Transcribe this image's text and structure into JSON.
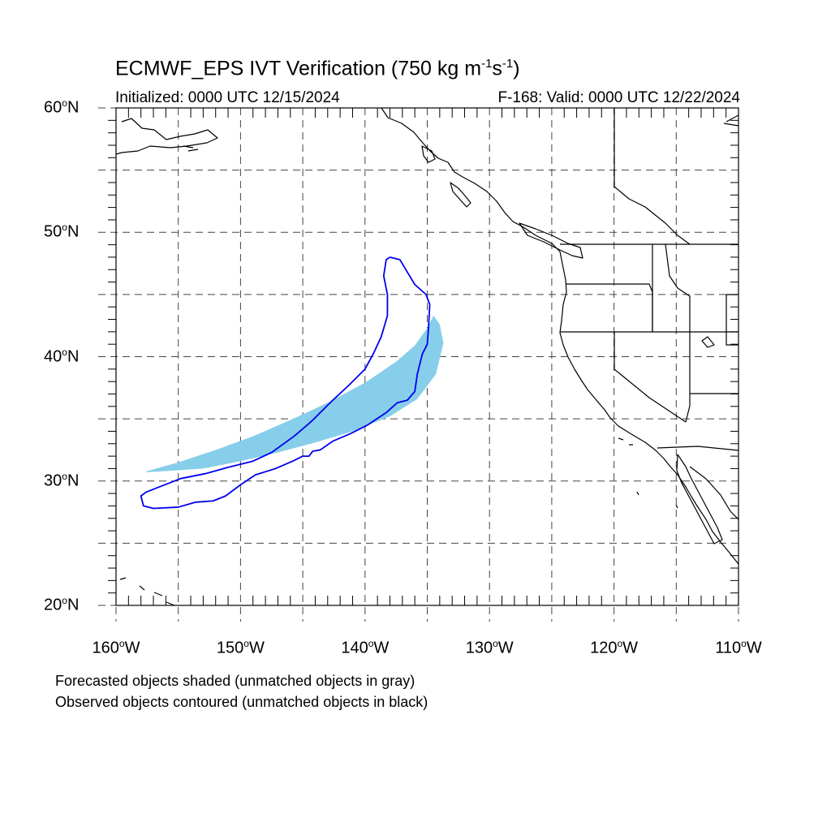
{
  "title": {
    "main": "ECMWF_EPS IVT Verification (750 kg m",
    "unit_exp1": "-1",
    "unit_mid": "s",
    "unit_exp2": "-1",
    "close": ")"
  },
  "subtitle": {
    "initialized": "Initialized: 0000 UTC 12/15/2024",
    "valid": "F-168: Valid: 0000 UTC 12/22/2024"
  },
  "axes": {
    "lon_min": -160,
    "lon_max": -110,
    "lat_min": 20,
    "lat_max": 60,
    "lat_labels": [
      {
        "value": 60,
        "deg": "60",
        "hemi": "N"
      },
      {
        "value": 50,
        "deg": "50",
        "hemi": "N"
      },
      {
        "value": 40,
        "deg": "40",
        "hemi": "N"
      },
      {
        "value": 30,
        "deg": "30",
        "hemi": "N"
      },
      {
        "value": 20,
        "deg": "20",
        "hemi": "N"
      }
    ],
    "lon_labels": [
      {
        "value": -160,
        "deg": "160",
        "hemi": "W"
      },
      {
        "value": -150,
        "deg": "150",
        "hemi": "W"
      },
      {
        "value": -140,
        "deg": "140",
        "hemi": "W"
      },
      {
        "value": -130,
        "deg": "130",
        "hemi": "W"
      },
      {
        "value": -120,
        "deg": "120",
        "hemi": "W"
      },
      {
        "value": -110,
        "deg": "110",
        "hemi": "W"
      }
    ],
    "grid_step": 5,
    "grid_style": "dashed"
  },
  "colors": {
    "forecast_fill": "#87ceeb",
    "observed_contour": "#0000ee",
    "coast": "#000000"
  },
  "forecast_object": [
    [
      -157.5,
      30.8
    ],
    [
      -155,
      31.5
    ],
    [
      -152,
      32.5
    ],
    [
      -149,
      33.6
    ],
    [
      -146,
      34.9
    ],
    [
      -143,
      36.3
    ],
    [
      -140,
      37.9
    ],
    [
      -137.5,
      39.6
    ],
    [
      -136,
      40.9
    ],
    [
      -135,
      42.3
    ],
    [
      -134.5,
      43.3
    ],
    [
      -134.0,
      42.6
    ],
    [
      -133.7,
      41.1
    ],
    [
      -134.3,
      38.6
    ],
    [
      -135.8,
      36.6
    ],
    [
      -138,
      35.2
    ],
    [
      -141,
      34.0
    ],
    [
      -144,
      33.1
    ],
    [
      -147,
      32.3
    ],
    [
      -150,
      31.6
    ],
    [
      -153,
      31.0
    ],
    [
      -156,
      30.8
    ],
    [
      -157.6,
      30.7
    ]
  ],
  "observed_object": [
    [
      -138,
      48
    ],
    [
      -137.2,
      47.8
    ],
    [
      -136.6,
      46.8
    ],
    [
      -136.0,
      45.8
    ],
    [
      -135.1,
      45.0
    ],
    [
      -134.8,
      44.2
    ],
    [
      -134.9,
      42.3
    ],
    [
      -135.0,
      41.0
    ],
    [
      -135.4,
      40.2
    ],
    [
      -135.8,
      38.6
    ],
    [
      -136.0,
      37.2
    ],
    [
      -136.6,
      36.5
    ],
    [
      -137.4,
      36.3
    ],
    [
      -138.3,
      35.5
    ],
    [
      -139.8,
      34.5
    ],
    [
      -141.2,
      33.8
    ],
    [
      -142.6,
      33.2
    ],
    [
      -143.6,
      32.5
    ],
    [
      -144.2,
      32.4
    ],
    [
      -144.5,
      32.0
    ],
    [
      -145.0,
      32.0
    ],
    [
      -145.8,
      31.6
    ],
    [
      -147.2,
      31.0
    ],
    [
      -148.8,
      30.5
    ],
    [
      -150.0,
      29.7
    ],
    [
      -151.2,
      28.8
    ],
    [
      -152.2,
      28.4
    ],
    [
      -153.6,
      28.3
    ],
    [
      -155.0,
      27.9
    ],
    [
      -157.0,
      27.8
    ],
    [
      -157.8,
      28.0
    ],
    [
      -158.0,
      28.8
    ],
    [
      -157.6,
      29.1
    ],
    [
      -156.6,
      29.5
    ],
    [
      -154.8,
      30.2
    ],
    [
      -152.8,
      30.6
    ],
    [
      -151.0,
      31.1
    ],
    [
      -149.0,
      31.6
    ],
    [
      -147.5,
      32.3
    ],
    [
      -145.7,
      33.6
    ],
    [
      -144.3,
      34.8
    ],
    [
      -142.8,
      36.3
    ],
    [
      -141.3,
      37.7
    ],
    [
      -140.0,
      39.0
    ],
    [
      -139.3,
      40.3
    ],
    [
      -138.7,
      41.6
    ],
    [
      -138.2,
      43.3
    ],
    [
      -138.2,
      45.0
    ],
    [
      -138.5,
      46.5
    ],
    [
      -138.3,
      47.8
    ],
    [
      -138,
      48
    ]
  ],
  "notes": {
    "forecast": "Forecasted objects shaded (unmatched objects in gray)",
    "observed": "Observed objects contoured (unmatched objects in black)"
  }
}
